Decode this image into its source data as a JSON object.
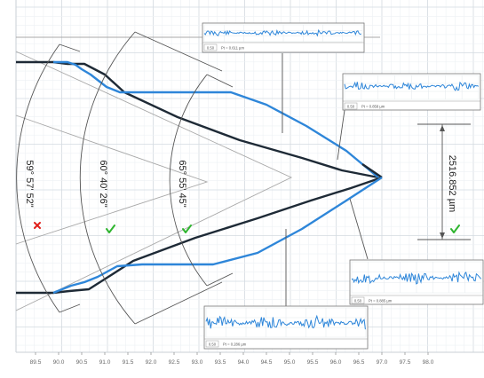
{
  "colors": {
    "grid_minor": "#edf1f4",
    "grid_major": "#d3dae0",
    "profile_blue": "#2e86d9",
    "profile_dark": "#1e2a36",
    "construction": "#a8a8a8",
    "dimension": "#555555",
    "check_ok": "#2fb52f",
    "check_fail": "#e0201a"
  },
  "x_axis": {
    "ticks": [
      "89.5",
      "90.0",
      "90.5",
      "91.0",
      "91.5",
      "92.0",
      "92.5",
      "93.0",
      "93.5",
      "94.0",
      "94.5",
      "95.0",
      "95.5",
      "96.0",
      "96.5",
      "97.0",
      "97.5",
      "98.0"
    ]
  },
  "angles": [
    {
      "label": "59° 57' 52\"",
      "status": "fail",
      "status_icon": "cross-icon"
    },
    {
      "label": "60° 40' 26\"",
      "status": "ok",
      "status_icon": "check-icon"
    },
    {
      "label": "65° 55' 45\"",
      "status": "ok",
      "status_icon": "check-icon"
    }
  ],
  "distance": {
    "label": "2516.852 µm",
    "status": "ok",
    "status_icon": "check-icon"
  },
  "insets": [
    {
      "badge": "0.50",
      "value": "Pt = 0.611 µm"
    },
    {
      "badge": "0.50",
      "value": "Pt = 0.858 µm"
    },
    {
      "badge": "0.50",
      "value": "Pt = 0.885 µm"
    },
    {
      "badge": "0.50",
      "value": "Pt = 0.286 µm"
    }
  ]
}
